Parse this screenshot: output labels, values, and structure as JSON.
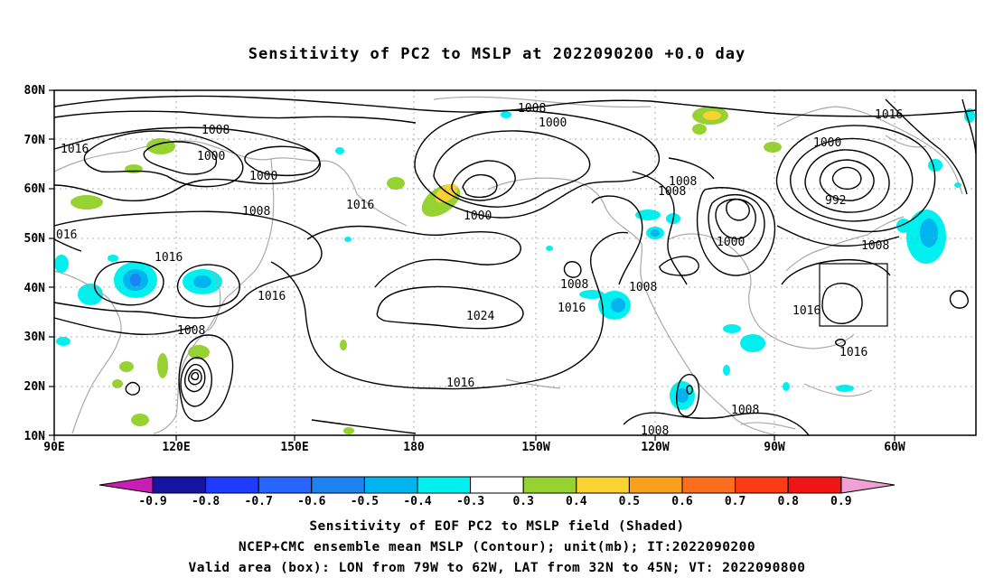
{
  "title": "Sensitivity of PC2 to MSLP at 2022090200 +0.0 day",
  "lat_labels": [
    "80N",
    "70N",
    "60N",
    "50N",
    "40N",
    "30N",
    "20N",
    "10N"
  ],
  "lon_labels": [
    "90E",
    "120E",
    "150E",
    "180",
    "150W",
    "120W",
    "90W",
    "60W"
  ],
  "contour_labels": [
    "1008",
    "1000",
    "1016",
    "1008",
    "1000",
    "1016",
    "1000",
    "1008",
    "1008",
    "1000",
    "1016",
    "1008",
    "1000",
    "992",
    "1016",
    "016",
    "1008",
    "1000",
    "1016",
    "1016",
    "1024",
    "1008",
    "1016",
    "1008",
    "1016",
    "1008",
    "1016",
    "1008",
    "1008",
    "1016"
  ],
  "colorbar": {
    "labels": [
      "-0.9",
      "-0.8",
      "-0.7",
      "-0.6",
      "-0.5",
      "-0.4",
      "-0.3",
      "0.3",
      "0.4",
      "0.5",
      "0.6",
      "0.7",
      "0.8",
      "0.9"
    ],
    "colors": [
      "#1414a0",
      "#1e3cff",
      "#2864ff",
      "#1e82f0",
      "#00b4f0",
      "#00f0f0",
      "#ffffff",
      "#96d232",
      "#fad232",
      "#faa01e",
      "#fa6e1e",
      "#fa3c14",
      "#f01414"
    ],
    "end_left_color": "#c81eb4",
    "end_right_color": "#f0a0d2"
  },
  "valid_box": {
    "lon_from": "79W",
    "lon_to": "62W",
    "lat_from": "32N",
    "lat_to": "45N"
  },
  "captions": {
    "line1": "Sensitivity of EOF PC2 to MSLP field (Shaded)",
    "line2": "NCEP+CMC ensemble mean MSLP (Contour); unit(mb); IT:2022090200",
    "line3": "Valid area (box): LON from 79W to 62W, LAT from 32N to 45N; VT: 2022090800"
  }
}
